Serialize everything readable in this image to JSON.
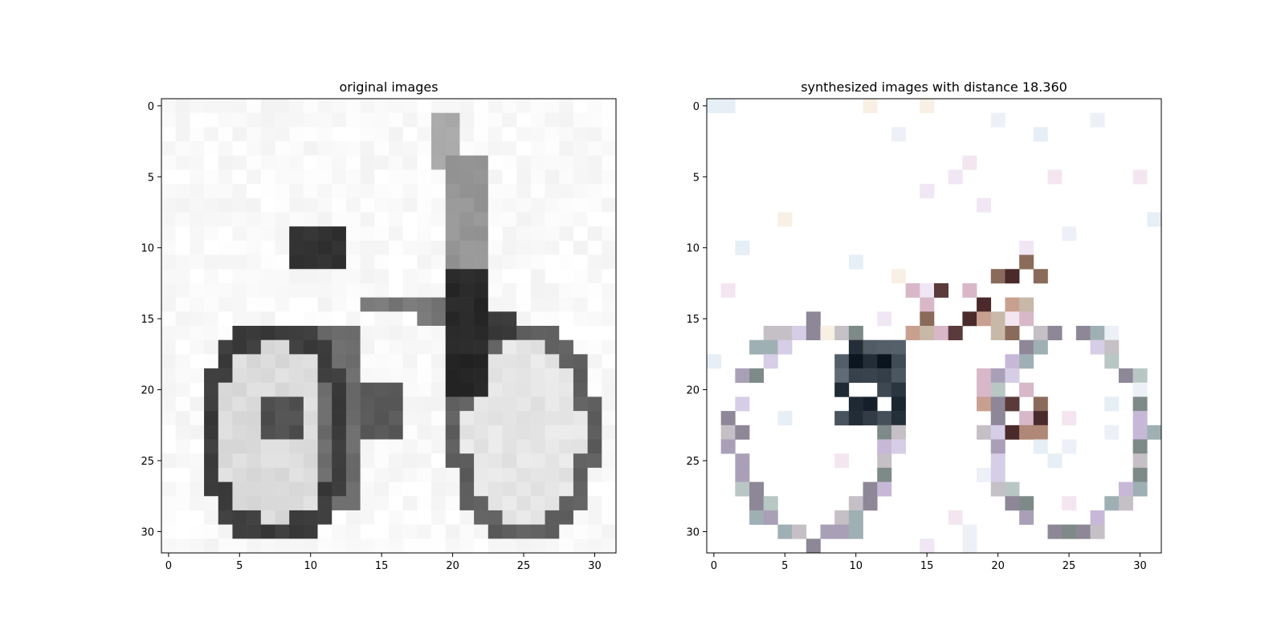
{
  "chart_data": [
    {
      "type": "heatmap",
      "title": "original images",
      "xlabel": "",
      "ylabel": "",
      "xlim": [
        -0.5,
        31.5
      ],
      "ylim": [
        31.5,
        -0.5
      ],
      "xticks": [
        "0",
        "5",
        "10",
        "15",
        "20",
        "25",
        "30"
      ],
      "yticks": [
        "0",
        "5",
        "10",
        "15",
        "20",
        "25",
        "30"
      ],
      "grid": false,
      "image": "32x32 grayscale bicycle (front-left wheel x=2-10, right wheel x=20-30, rows 15-31; frame/handlebar rising to x=19-21, rows 1-12)"
    },
    {
      "type": "heatmap",
      "title": "synthesized images with distance 18.360",
      "xlabel": "",
      "ylabel": "",
      "xlim": [
        -0.5,
        31.5
      ],
      "ylim": [
        31.5,
        -0.5
      ],
      "xticks": [
        "0",
        "5",
        "10",
        "15",
        "20",
        "25",
        "30"
      ],
      "yticks": [
        "0",
        "5",
        "10",
        "15",
        "20",
        "25",
        "30"
      ],
      "grid": false,
      "image": "32x32 sparse pastel-colored pixel reconstruction of the bicycle, two wheel rings with scattered colored pixels on white"
    }
  ]
}
